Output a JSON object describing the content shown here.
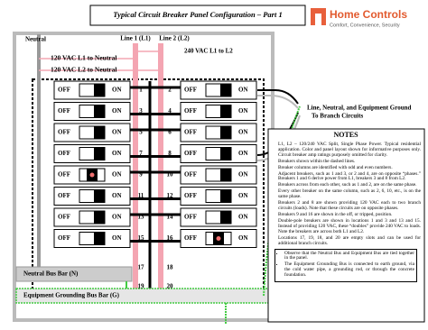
{
  "header": {
    "title": "Typical Circuit Breaker Panel Configuration – Part 1",
    "brand": "Home Controls",
    "tagline": "Comfort, Convenience, Security"
  },
  "labels": {
    "neutral": "Neutral",
    "line1": "Line 1 (L1)",
    "line2": "Line 2 (L2)",
    "l1_neutral": "120 VAC L1 to Neutral",
    "l2_neutral": "120 VAC L2 to Neutral",
    "l1_l2": "240 VAC L1 to L2",
    "branch": "Line, Neutral, and Equipment Ground",
    "branch2": "To Branch Circuits",
    "neutral_bus": "Neutral Bus Bar (N)",
    "ground_bus": "Equipment Grounding Bus Bar (G)"
  },
  "switch": {
    "off": "OFF",
    "on": "ON"
  },
  "rows": [
    {
      "left": "1",
      "right": "2"
    },
    {
      "left": "3",
      "right": "4"
    },
    {
      "left": "5",
      "right": "6"
    },
    {
      "left": "7",
      "right": "8"
    },
    {
      "left": "9",
      "right": "10"
    },
    {
      "left": "11",
      "right": "12"
    },
    {
      "left": "13",
      "right": "14"
    },
    {
      "left": "15",
      "right": "16"
    },
    {
      "left": "17",
      "right": "18"
    },
    {
      "left": "19",
      "right": "20"
    }
  ],
  "notes": {
    "title": "NOTES",
    "items": [
      "L1, L2 – 120/240 VAC Split, Single Phase Power. Typical residential application. Color and panel layout shown for informative purposes only. Circuit breaker amp ratings purposely omitted for clarity.",
      "Breakers shown within the dashed lines.",
      "Breaker columns are identified with odd and even numbers.",
      "Adjacent breakers, such as 1 and 3, or 2 and 4, are on opposite “phases.” Breakers 1 and 6 derive power from L1, breakers 3 and 8 from L2.",
      "Breakers across from each other, such as 1 and 2, are on the same phase.",
      "Every other breaker on the same column, such as 2, 6, 10, etc., is on the same phase.",
      "Breakers 2 and 8 are shown providing 120 VAC each to two branch circuits (loads). Note that these circuits are on opposite phases.",
      "Breakers 9 and 16 are shown in the off, or tripped, position.",
      "Double-pole breakers are shown in locations 1 and 3 and 13 and 15. Instead of providing 120 VAC, these “doubles” provide 240 VAC to loads. Note the breakers are across both L1 and L2.",
      "Locations 17, 19, 18, and 20 are empty slots and can be used for additional branch circuits."
    ],
    "boxed": [
      "Observe that the Neutral Bus and Equipment Bus are tied together in the panel.",
      "The Equipment Grounding Bus is connected to earth ground, via the cold water pipe, a grounding rod, or through the concrete foundation."
    ]
  }
}
